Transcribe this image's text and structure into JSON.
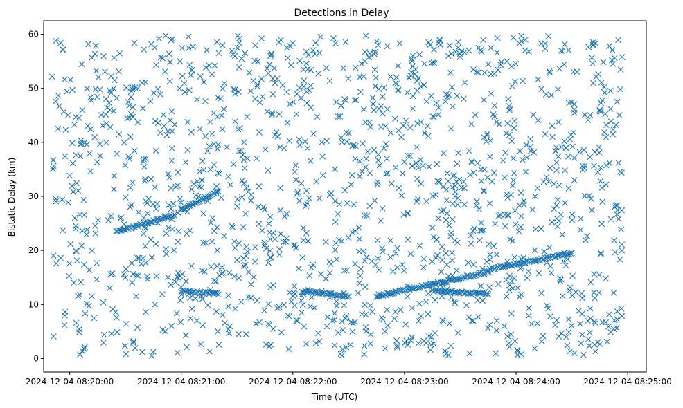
{
  "chart_data": {
    "type": "scatter",
    "title": "Detections in Delay",
    "xlabel": "Time (UTC)",
    "ylabel": "Bistatic Delay (km)",
    "marker": "x",
    "color": "#1f77b4",
    "xlim": [
      "2024-12-04 08:19:46",
      "2024-12-04 08:25:10"
    ],
    "ylim": [
      -2.5,
      62.5
    ],
    "x_ticks": [
      "2024-12-04 08:20:00",
      "2024-12-04 08:21:00",
      "2024-12-04 08:22:00",
      "2024-12-04 08:23:00",
      "2024-12-04 08:24:00",
      "2024-12-04 08:25:00"
    ],
    "y_ticks": [
      0,
      10,
      20,
      30,
      40,
      50,
      60
    ],
    "x_range": [
      "2024-12-04 08:19:50",
      "2024-12-04 08:24:57"
    ],
    "y_range": [
      0.5,
      59.8
    ],
    "tracks": [
      {
        "x": [
          "2024-12-04 08:20:25",
          "2024-12-04 08:20:56"
        ],
        "y": [
          23.5,
          26.5
        ]
      },
      {
        "x": [
          "2024-12-04 08:21:00",
          "2024-12-04 08:21:20"
        ],
        "y": [
          27.5,
          31.0
        ]
      },
      {
        "x": [
          "2024-12-04 08:21:00",
          "2024-12-04 08:21:20"
        ],
        "y": [
          12.5,
          12.0
        ]
      },
      {
        "x": [
          "2024-12-04 08:22:05",
          "2024-12-04 08:22:30"
        ],
        "y": [
          12.5,
          11.5
        ]
      },
      {
        "x": [
          "2024-12-04 08:22:45",
          "2024-12-04 08:23:45"
        ],
        "y": [
          11.5,
          16.0
        ]
      },
      {
        "x": [
          "2024-12-04 08:23:15",
          "2024-12-04 08:23:45"
        ],
        "y": [
          12.5,
          12.0
        ]
      },
      {
        "x": [
          "2024-12-04 08:23:45",
          "2024-12-04 08:24:30"
        ],
        "y": [
          16.5,
          19.5
        ]
      }
    ]
  }
}
